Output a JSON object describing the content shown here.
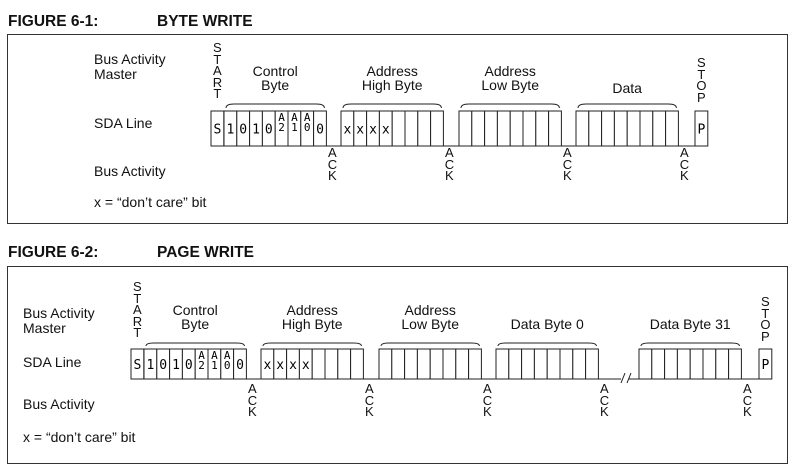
{
  "figure1": {
    "number": "FIGURE 6-1:",
    "title": "BYTE WRITE",
    "row_labels": {
      "master": [
        "Bus Activity",
        "Master"
      ],
      "sda": "SDA Line",
      "bus": "Bus Activity"
    },
    "note": "x = “don’t care” bit",
    "start_label": "START",
    "stop_label": "STOP",
    "ack_label": "ACK",
    "bytes": [
      {
        "label": [
          "Control",
          "Byte"
        ],
        "bits": [
          "1",
          "0",
          "1",
          "0",
          "A\n2",
          "A\n1",
          "A\n0",
          "0"
        ]
      },
      {
        "label": [
          "Address",
          "High Byte"
        ],
        "bits": [
          "x",
          "x",
          "x",
          "x",
          "",
          "",
          "",
          ""
        ]
      },
      {
        "label": [
          "Address",
          "Low Byte"
        ],
        "bits": [
          "",
          "",
          "",
          "",
          "",
          "",
          "",
          ""
        ]
      },
      {
        "label": [
          "Data"
        ],
        "bits": [
          "",
          "",
          "",
          "",
          "",
          "",
          "",
          ""
        ]
      }
    ],
    "start_bit": "S",
    "stop_bit": "P"
  },
  "figure2": {
    "number": "FIGURE 6-2:",
    "title": "PAGE WRITE",
    "row_labels": {
      "master": [
        "Bus Activity",
        "Master"
      ],
      "sda": "SDA Line",
      "bus": "Bus Activity"
    },
    "note": "x = “don’t care” bit",
    "start_label": "START",
    "stop_label": "STOP",
    "ack_label": "ACK",
    "bytes": [
      {
        "label": [
          "Control",
          "Byte"
        ],
        "bits": [
          "1",
          "0",
          "1",
          "0",
          "A\n2",
          "A\n1",
          "A\n0",
          "0"
        ]
      },
      {
        "label": [
          "Address",
          "High Byte"
        ],
        "bits": [
          "x",
          "x",
          "x",
          "x",
          "",
          "",
          "",
          ""
        ]
      },
      {
        "label": [
          "Address",
          "Low Byte"
        ],
        "bits": [
          "",
          "",
          "",
          "",
          "",
          "",
          "",
          ""
        ]
      },
      {
        "label": [
          "Data Byte 0"
        ],
        "bits": [
          "",
          "",
          "",
          "",
          "",
          "",
          "",
          ""
        ]
      },
      {
        "label": [
          "Data Byte 31"
        ],
        "bits": [
          "",
          "",
          "",
          "",
          "",
          "",
          "",
          ""
        ]
      }
    ],
    "start_bit": "S",
    "stop_bit": "P"
  }
}
